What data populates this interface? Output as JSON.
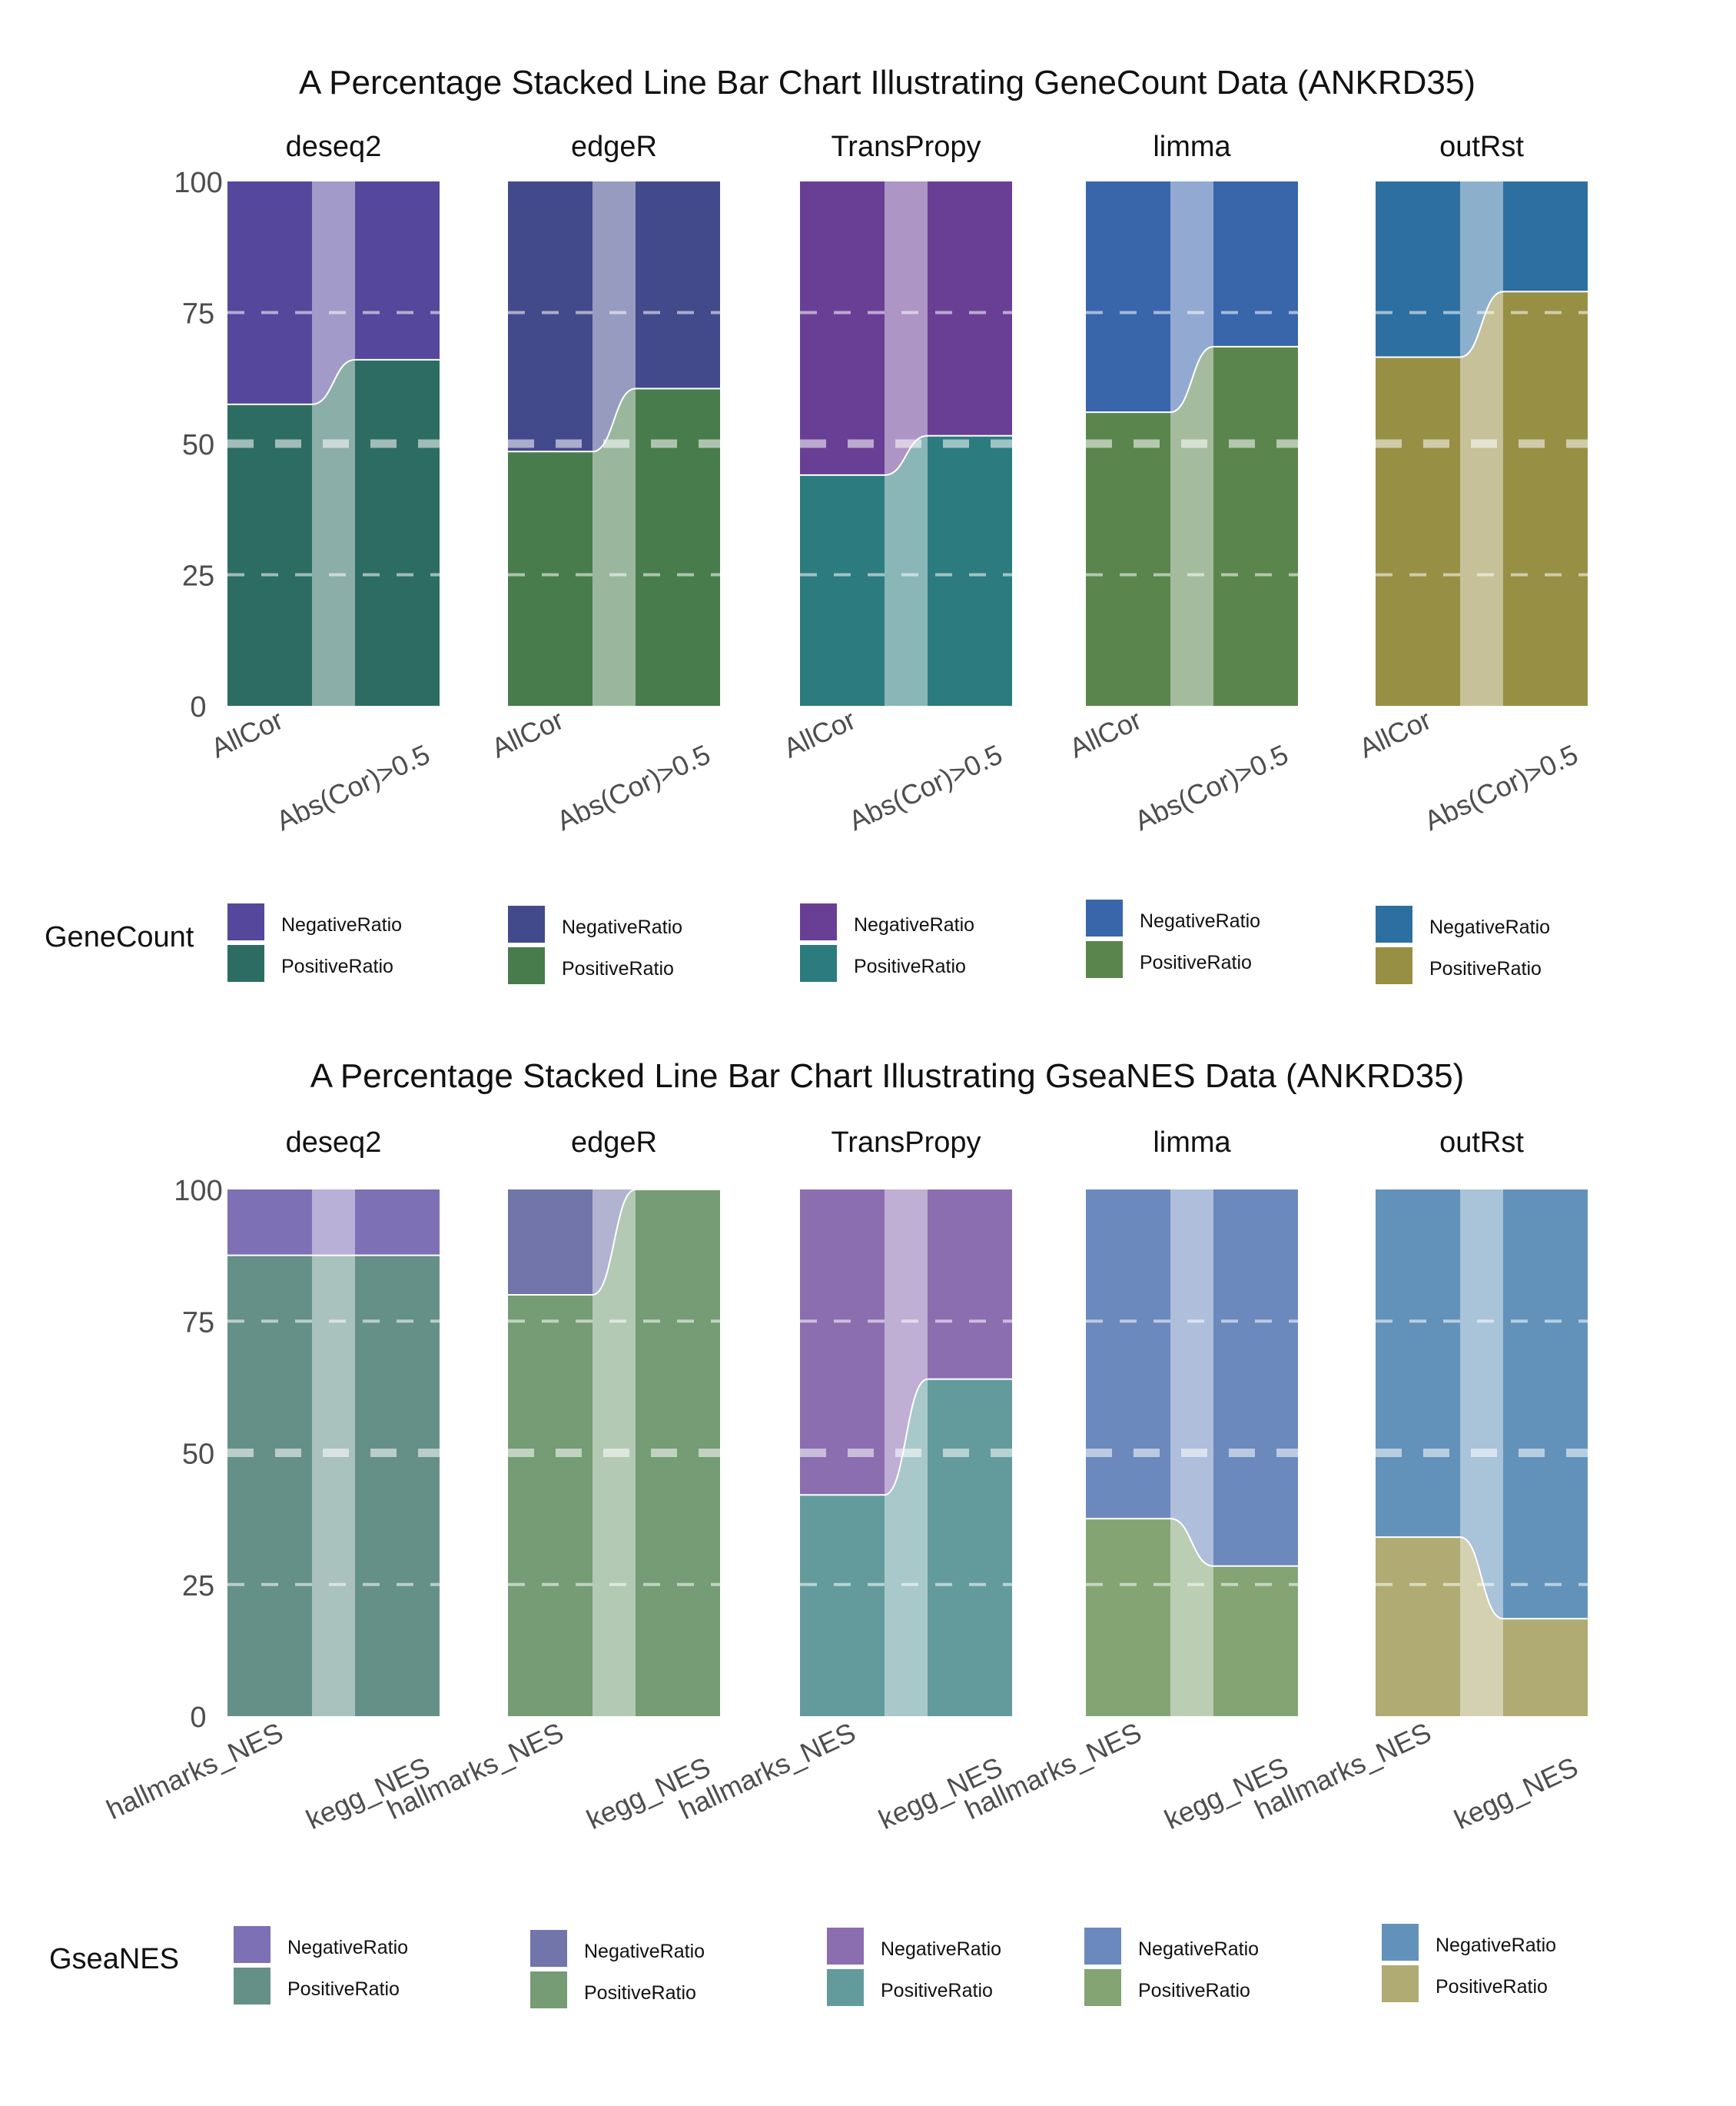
{
  "charts": [
    {
      "title": "A Percentage Stacked Line Bar Chart Illustrating GeneCount Data (ANKRD35)",
      "legend_title": "GeneCount",
      "y_ticks": [
        "0",
        "25",
        "50",
        "75",
        "100"
      ],
      "x_labels": [
        "AllCor",
        "Abs(Cor)>0.5"
      ],
      "series_names": [
        "NegativeRatio",
        "PositiveRatio"
      ]
    },
    {
      "title": "A Percentage Stacked Line Bar Chart Illustrating GseaNES Data (ANKRD35)",
      "legend_title": "GseaNES",
      "y_ticks": [
        "0",
        "25",
        "50",
        "75",
        "100"
      ],
      "x_labels": [
        "hallmarks_NES",
        "kegg_NES"
      ],
      "series_names": [
        "NegativeRatio",
        "PositiveRatio"
      ]
    }
  ],
  "chart_data": [
    {
      "type": "bar",
      "stacking": "percent",
      "title": "A Percentage Stacked Line Bar Chart Illustrating GeneCount Data (ANKRD35)",
      "legend_title": "GeneCount",
      "ylim": [
        0,
        100
      ],
      "y_ticks": [
        0,
        25,
        50,
        75,
        100
      ],
      "grid": "dashed horizontal at 25, 50, 75",
      "legend_placement": "bottom",
      "categories": [
        "AllCor",
        "Abs(Cor)>0.5"
      ],
      "panels": [
        {
          "name": "deseq2",
          "series": [
            {
              "name": "NegativeRatio",
              "color": "#55479b",
              "values": [
                42.5,
                34
              ]
            },
            {
              "name": "PositiveRatio",
              "color": "#2d6c62",
              "values": [
                57.5,
                66
              ]
            }
          ]
        },
        {
          "name": "edgeR",
          "series": [
            {
              "name": "NegativeRatio",
              "color": "#424a8c",
              "values": [
                51.5,
                39.5
              ]
            },
            {
              "name": "PositiveRatio",
              "color": "#487c4c",
              "values": [
                48.5,
                60.5
              ]
            }
          ]
        },
        {
          "name": "TransPropy",
          "series": [
            {
              "name": "NegativeRatio",
              "color": "#693f96",
              "values": [
                56,
                48.5
              ]
            },
            {
              "name": "PositiveRatio",
              "color": "#2c7b7e",
              "values": [
                44,
                51.5
              ]
            }
          ]
        },
        {
          "name": "limma",
          "series": [
            {
              "name": "NegativeRatio",
              "color": "#3965ab",
              "values": [
                44,
                31.5
              ]
            },
            {
              "name": "PositiveRatio",
              "color": "#5a854d",
              "values": [
                56,
                68.5
              ]
            }
          ]
        },
        {
          "name": "outRst",
          "series": [
            {
              "name": "NegativeRatio",
              "color": "#2e6fa1",
              "values": [
                33.5,
                21
              ]
            },
            {
              "name": "PositiveRatio",
              "color": "#978f43",
              "values": [
                66.5,
                79
              ]
            }
          ]
        }
      ]
    },
    {
      "type": "bar",
      "stacking": "percent",
      "title": "A Percentage Stacked Line Bar Chart Illustrating GseaNES Data (ANKRD35)",
      "legend_title": "GseaNES",
      "ylim": [
        0,
        100
      ],
      "y_ticks": [
        0,
        25,
        50,
        75,
        100
      ],
      "grid": "dashed horizontal at 25, 50, 75",
      "legend_placement": "bottom",
      "categories": [
        "hallmarks_NES",
        "kegg_NES"
      ],
      "panels": [
        {
          "name": "deseq2",
          "series": [
            {
              "name": "NegativeRatio",
              "color": "#7d70b4",
              "values": [
                12.5,
                12.5
              ]
            },
            {
              "name": "PositiveRatio",
              "color": "#659087",
              "values": [
                87.5,
                87.5
              ]
            }
          ]
        },
        {
          "name": "edgeR",
          "series": [
            {
              "name": "NegativeRatio",
              "color": "#7175a9",
              "values": [
                20,
                0
              ]
            },
            {
              "name": "PositiveRatio",
              "color": "#759c75",
              "values": [
                80,
                100
              ]
            }
          ]
        },
        {
          "name": "TransPropy",
          "series": [
            {
              "name": "NegativeRatio",
              "color": "#8b6eb0",
              "values": [
                58,
                36
              ]
            },
            {
              "name": "PositiveRatio",
              "color": "#639b9c",
              "values": [
                42,
                64
              ]
            }
          ]
        },
        {
          "name": "limma",
          "series": [
            {
              "name": "NegativeRatio",
              "color": "#6c89bd",
              "values": [
                62.5,
                71.5
              ]
            },
            {
              "name": "PositiveRatio",
              "color": "#84a474",
              "values": [
                37.5,
                28.5
              ]
            }
          ]
        },
        {
          "name": "outRst",
          "series": [
            {
              "name": "NegativeRatio",
              "color": "#6292ba",
              "values": [
                66,
                81.5
              ]
            },
            {
              "name": "PositiveRatio",
              "color": "#afab72",
              "values": [
                34,
                18.5
              ]
            }
          ]
        }
      ]
    }
  ]
}
